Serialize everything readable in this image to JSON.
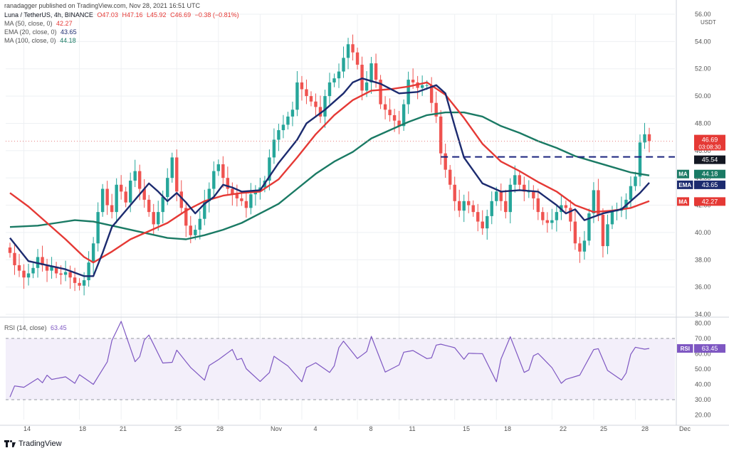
{
  "header": {
    "published": "ranadagger published on TradingView.com, Nov 28, 2021 16:51 UTC",
    "symbol": "Luna / TetherUS, 4h, BINANCE",
    "open": "O47.03",
    "high": "H47.16",
    "low": "L45.92",
    "close": "C46.69",
    "change": "−0.38 (−0.81%)",
    "indicators": [
      {
        "label": "MA (50, close, 0)",
        "value": "42.27",
        "color": "#e53935"
      },
      {
        "label": "EMA (20, close, 0)",
        "value": "43.65",
        "color": "#1c2b6f"
      },
      {
        "label": "MA (100, close, 0)",
        "value": "44.18",
        "color": "#1a7a64"
      }
    ],
    "rsi_label": "RSI (14, close)",
    "rsi_value": "63.45"
  },
  "logo_text": "TradingView",
  "chart_data": {
    "type": "candlestick",
    "price_axis": {
      "unit": "USDT",
      "ylim": [
        34,
        56
      ],
      "ticks": [
        "56.00",
        "54.00",
        "52.00",
        "50.00",
        "48.00",
        "46.00",
        "44.00",
        "42.00",
        "40.00",
        "38.00",
        "36.00",
        "34.00"
      ]
    },
    "rsi_axis": {
      "ylim": [
        17,
        82
      ],
      "ticks": [
        "80.00",
        "70.00",
        "60.00",
        "50.00",
        "40.00",
        "30.00",
        "20.00"
      ],
      "levels": [
        30,
        70
      ]
    },
    "x_ticks": [
      "14",
      "18",
      "21",
      "25",
      "28",
      "Nov",
      "4",
      "8",
      "11",
      "15",
      "18",
      "22",
      "25",
      "28",
      "Dec"
    ],
    "price_labels": [
      {
        "name": "last",
        "text": "46.69",
        "sub": "03:08:30",
        "value": 46.69,
        "color": "#e53935"
      },
      {
        "name": "support",
        "text": "45.54",
        "value": 45.54,
        "color": "#131722"
      },
      {
        "name": "ma100",
        "tag": "MA",
        "text": "44.18",
        "value": 44.18,
        "color": "#1a7a64"
      },
      {
        "name": "ema20",
        "tag": "EMA",
        "text": "43.65",
        "value": 43.65,
        "color": "#1c2b6f"
      },
      {
        "name": "ma50",
        "tag": "MA",
        "text": "42.27",
        "value": 42.27,
        "color": "#e53935"
      },
      {
        "name": "rsi",
        "tag": "RSI",
        "text": "63.45",
        "value": 63.45,
        "color": "#7e57c2"
      }
    ],
    "support_line": 45.54,
    "series_close": [
      [
        0,
        38.5
      ],
      [
        1,
        37.6
      ],
      [
        2,
        37.2
      ],
      [
        3,
        36.7
      ],
      [
        4,
        37.0
      ],
      [
        5,
        37.4
      ],
      [
        6,
        38.2
      ],
      [
        7,
        37.6
      ],
      [
        8,
        37.2
      ],
      [
        9,
        37.5
      ],
      [
        10,
        37.0
      ],
      [
        11,
        36.9
      ],
      [
        12,
        37.1
      ],
      [
        13,
        36.7
      ],
      [
        14,
        36.3
      ],
      [
        15,
        36.1
      ],
      [
        16,
        36.5
      ],
      [
        17,
        37.8
      ],
      [
        18,
        39.2
      ],
      [
        19,
        41.5
      ],
      [
        20,
        43.2
      ],
      [
        21,
        42.0
      ],
      [
        22,
        41.5
      ],
      [
        23,
        43.5
      ],
      [
        24,
        43.0
      ],
      [
        25,
        42.2
      ],
      [
        26,
        43.8
      ],
      [
        27,
        44.5
      ],
      [
        28,
        43.2
      ],
      [
        29,
        42.4
      ],
      [
        30,
        41.5
      ],
      [
        31,
        40.6
      ],
      [
        32,
        41.5
      ],
      [
        33,
        42.6
      ],
      [
        34,
        44.0
      ],
      [
        35,
        45.5
      ],
      [
        36,
        43.0
      ],
      [
        37,
        41.8
      ],
      [
        38,
        40.5
      ],
      [
        39,
        39.8
      ],
      [
        40,
        40.2
      ],
      [
        41,
        41.0
      ],
      [
        42,
        42.3
      ],
      [
        43,
        43.2
      ],
      [
        44,
        44.5
      ],
      [
        45,
        45.0
      ],
      [
        46,
        44.0
      ],
      [
        47,
        43.2
      ],
      [
        48,
        42.8
      ],
      [
        49,
        42.5
      ],
      [
        50,
        42.3
      ],
      [
        51,
        41.8
      ],
      [
        52,
        42.8
      ],
      [
        53,
        43.0
      ],
      [
        54,
        43.3
      ],
      [
        55,
        43.8
      ],
      [
        56,
        45.5
      ],
      [
        57,
        46.8
      ],
      [
        58,
        47.5
      ],
      [
        59,
        47.9
      ],
      [
        60,
        48.5
      ],
      [
        61,
        49.0
      ],
      [
        62,
        51.0
      ],
      [
        63,
        50.5
      ],
      [
        64,
        50.0
      ],
      [
        65,
        49.6
      ],
      [
        66,
        49.2
      ],
      [
        67,
        48.5
      ],
      [
        68,
        50.0
      ],
      [
        69,
        51.0
      ],
      [
        70,
        51.3
      ],
      [
        71,
        51.8
      ],
      [
        72,
        52.8
      ],
      [
        73,
        53.8
      ],
      [
        74,
        53.2
      ],
      [
        75,
        52.3
      ],
      [
        76,
        50.4
      ],
      [
        77,
        51.0
      ],
      [
        78,
        52.4
      ],
      [
        79,
        51.2
      ],
      [
        80,
        49.4
      ],
      [
        81,
        49.0
      ],
      [
        82,
        48.6
      ],
      [
        83,
        48.2
      ],
      [
        84,
        47.8
      ],
      [
        85,
        49.4
      ],
      [
        86,
        51.2
      ],
      [
        87,
        51.0
      ],
      [
        88,
        50.6
      ],
      [
        89,
        50.8
      ],
      [
        90,
        50.8
      ],
      [
        91,
        49.5
      ],
      [
        92,
        48.5
      ],
      [
        93,
        45.8
      ],
      [
        94,
        44.6
      ],
      [
        95,
        43.5
      ],
      [
        96,
        42.3
      ],
      [
        97,
        41.6
      ],
      [
        98,
        42.3
      ],
      [
        99,
        42.0
      ],
      [
        100,
        41.5
      ],
      [
        101,
        40.8
      ],
      [
        102,
        40.3
      ],
      [
        103,
        41.2
      ],
      [
        104,
        42.3
      ],
      [
        105,
        43.0
      ],
      [
        106,
        42.3
      ],
      [
        107,
        41.5
      ],
      [
        108,
        43.5
      ],
      [
        109,
        44.2
      ],
      [
        110,
        43.5
      ],
      [
        111,
        43.0
      ],
      [
        112,
        43.0
      ],
      [
        113,
        42.5
      ],
      [
        114,
        41.5
      ],
      [
        115,
        40.9
      ],
      [
        116,
        40.7
      ],
      [
        117,
        40.9
      ],
      [
        118,
        41.5
      ],
      [
        119,
        42.0
      ],
      [
        120,
        41.8
      ],
      [
        121,
        40.8
      ],
      [
        122,
        39.2
      ],
      [
        123,
        38.6
      ],
      [
        124,
        39.4
      ],
      [
        125,
        41.4
      ],
      [
        126,
        43.1
      ],
      [
        127,
        41.3
      ],
      [
        128,
        39.0
      ],
      [
        129,
        40.6
      ],
      [
        130,
        41.6
      ],
      [
        131,
        41.6
      ],
      [
        132,
        41.8
      ],
      [
        133,
        42.4
      ],
      [
        134,
        43.4
      ],
      [
        135,
        44.1
      ],
      [
        136,
        46.6
      ],
      [
        137,
        47.2
      ],
      [
        138,
        46.7
      ]
    ],
    "series_ma50": [
      [
        0,
        42.9
      ],
      [
        4,
        41.9
      ],
      [
        8,
        40.7
      ],
      [
        12,
        39.5
      ],
      [
        16,
        38.2
      ],
      [
        18,
        37.8
      ],
      [
        22,
        38.6
      ],
      [
        26,
        39.5
      ],
      [
        30,
        40.1
      ],
      [
        34,
        40.7
      ],
      [
        38,
        41.6
      ],
      [
        42,
        42.3
      ],
      [
        46,
        42.7
      ],
      [
        50,
        42.9
      ],
      [
        54,
        43.0
      ],
      [
        58,
        43.9
      ],
      [
        62,
        45.5
      ],
      [
        66,
        47.2
      ],
      [
        70,
        48.6
      ],
      [
        74,
        49.7
      ],
      [
        78,
        50.4
      ],
      [
        82,
        50.5
      ],
      [
        86,
        50.7
      ],
      [
        90,
        51.0
      ],
      [
        94,
        50.1
      ],
      [
        98,
        48.4
      ],
      [
        102,
        46.5
      ],
      [
        106,
        45.2
      ],
      [
        110,
        44.5
      ],
      [
        114,
        43.7
      ],
      [
        118,
        43.0
      ],
      [
        122,
        42.0
      ],
      [
        126,
        41.5
      ],
      [
        130,
        41.6
      ],
      [
        134,
        41.8
      ],
      [
        138,
        42.3
      ]
    ],
    "series_ema20": [
      [
        0,
        39.6
      ],
      [
        4,
        37.9
      ],
      [
        8,
        37.6
      ],
      [
        12,
        37.3
      ],
      [
        16,
        36.8
      ],
      [
        18,
        36.8
      ],
      [
        20,
        38.5
      ],
      [
        22,
        40.4
      ],
      [
        26,
        42.0
      ],
      [
        28,
        42.8
      ],
      [
        30,
        43.6
      ],
      [
        32,
        43.0
      ],
      [
        34,
        42.3
      ],
      [
        36,
        42.9
      ],
      [
        38,
        42.2
      ],
      [
        40,
        41.4
      ],
      [
        42,
        42.1
      ],
      [
        44,
        42.6
      ],
      [
        46,
        43.5
      ],
      [
        48,
        43.3
      ],
      [
        50,
        43.0
      ],
      [
        54,
        43.1
      ],
      [
        58,
        45.1
      ],
      [
        62,
        46.8
      ],
      [
        64,
        48.0
      ],
      [
        68,
        49.0
      ],
      [
        72,
        50.2
      ],
      [
        74,
        51.0
      ],
      [
        76,
        51.3
      ],
      [
        80,
        50.9
      ],
      [
        84,
        50.2
      ],
      [
        88,
        50.3
      ],
      [
        92,
        50.8
      ],
      [
        94,
        50.2
      ],
      [
        96,
        47.8
      ],
      [
        98,
        45.5
      ],
      [
        102,
        43.6
      ],
      [
        106,
        43.0
      ],
      [
        110,
        43.1
      ],
      [
        114,
        43.0
      ],
      [
        118,
        42.0
      ],
      [
        120,
        41.4
      ],
      [
        122,
        41.7
      ],
      [
        124,
        40.9
      ],
      [
        128,
        41.4
      ],
      [
        132,
        41.7
      ],
      [
        136,
        42.9
      ],
      [
        138,
        43.65
      ]
    ],
    "series_ma100": [
      [
        0,
        40.4
      ],
      [
        6,
        40.5
      ],
      [
        10,
        40.7
      ],
      [
        14,
        40.9
      ],
      [
        18,
        40.8
      ],
      [
        22,
        40.5
      ],
      [
        26,
        40.2
      ],
      [
        30,
        39.9
      ],
      [
        34,
        39.6
      ],
      [
        38,
        39.5
      ],
      [
        42,
        39.8
      ],
      [
        46,
        40.2
      ],
      [
        50,
        40.7
      ],
      [
        54,
        41.4
      ],
      [
        58,
        42.1
      ],
      [
        62,
        43.2
      ],
      [
        66,
        44.3
      ],
      [
        70,
        45.2
      ],
      [
        74,
        45.9
      ],
      [
        78,
        46.9
      ],
      [
        82,
        47.5
      ],
      [
        86,
        48.1
      ],
      [
        90,
        48.6
      ],
      [
        94,
        48.8
      ],
      [
        98,
        48.8
      ],
      [
        102,
        48.5
      ],
      [
        106,
        47.8
      ],
      [
        110,
        47.3
      ],
      [
        114,
        46.7
      ],
      [
        118,
        46.2
      ],
      [
        122,
        45.6
      ],
      [
        126,
        45.2
      ],
      [
        130,
        44.8
      ],
      [
        134,
        44.4
      ],
      [
        138,
        44.18
      ]
    ],
    "series_rsi": [
      [
        0,
        35
      ],
      [
        3,
        37
      ],
      [
        6,
        46
      ],
      [
        9,
        41
      ],
      [
        12,
        46
      ],
      [
        15,
        43
      ],
      [
        18,
        40
      ],
      [
        21,
        58
      ],
      [
        24,
        80
      ],
      [
        27,
        57
      ],
      [
        30,
        70
      ],
      [
        33,
        55
      ],
      [
        36,
        59
      ],
      [
        39,
        51
      ],
      [
        42,
        46
      ],
      [
        45,
        55
      ],
      [
        48,
        65
      ],
      [
        51,
        48
      ],
      [
        54,
        43
      ],
      [
        57,
        55
      ],
      [
        60,
        52
      ],
      [
        63,
        45
      ],
      [
        66,
        53
      ],
      [
        69,
        50
      ],
      [
        72,
        66
      ],
      [
        75,
        58
      ],
      [
        78,
        68
      ],
      [
        81,
        48
      ],
      [
        84,
        56
      ],
      [
        87,
        61
      ],
      [
        90,
        59
      ],
      [
        93,
        64
      ],
      [
        96,
        65
      ],
      [
        99,
        57
      ],
      [
        102,
        60
      ],
      [
        105,
        45
      ],
      [
        108,
        70
      ],
      [
        111,
        50
      ],
      [
        114,
        58
      ],
      [
        117,
        52
      ],
      [
        120,
        40
      ],
      [
        123,
        46
      ],
      [
        126,
        66
      ],
      [
        129,
        48
      ],
      [
        132,
        45
      ],
      [
        135,
        62
      ],
      [
        138,
        63.45
      ]
    ]
  }
}
